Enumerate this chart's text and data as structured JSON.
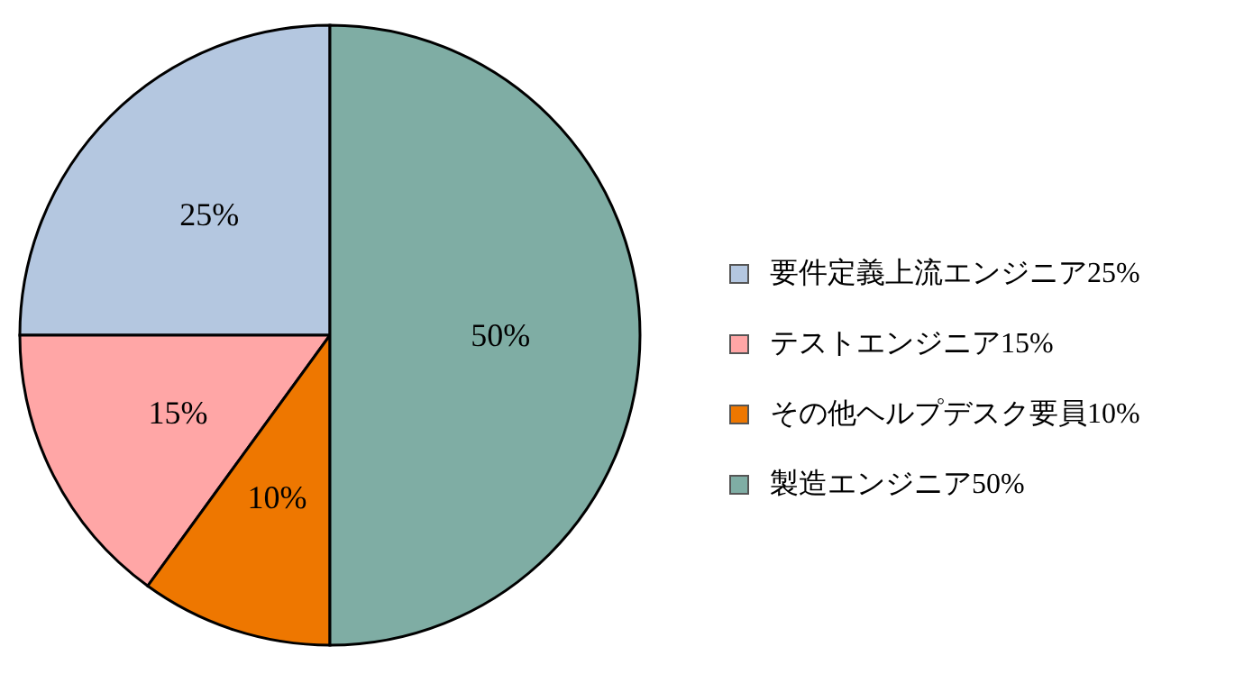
{
  "chart_data": {
    "type": "pie",
    "categories": [
      "要件定義上流エンジニア25%",
      "テストエンジニア15%",
      "その他ヘルプデスク要員10%",
      "製造エンジニア50%"
    ],
    "values": [
      25,
      15,
      10,
      50
    ],
    "colors": [
      "#b4c7e0",
      "#ffa6a6",
      "#ee7700",
      "#7fada4"
    ],
    "value_labels": [
      "25%",
      "15%",
      "10%",
      "50%"
    ],
    "legend": "right"
  }
}
